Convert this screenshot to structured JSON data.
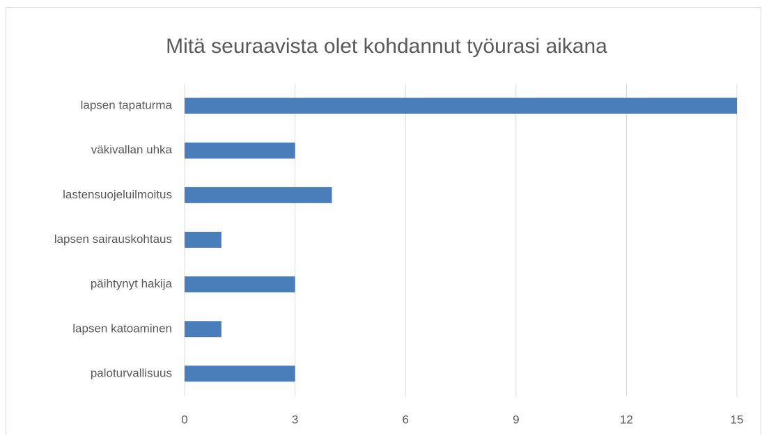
{
  "chart_data": {
    "type": "barh",
    "title": "Mitä seuraavista olet kohdannut työurasi aikana",
    "categories": [
      "lapsen tapaturma",
      "väkivallan uhka",
      "lastensuojeluilmoitus",
      "lapsen sairauskohtaus",
      "päihtynyt hakija",
      "lapsen katoaminen",
      "paloturvallisuus"
    ],
    "values": [
      15,
      3,
      4,
      1,
      3,
      1,
      3
    ],
    "color": "#4a7ebb",
    "xlim": [
      0,
      15
    ],
    "xticks": [
      0,
      3,
      6,
      9,
      12,
      15
    ],
    "grid": true
  }
}
